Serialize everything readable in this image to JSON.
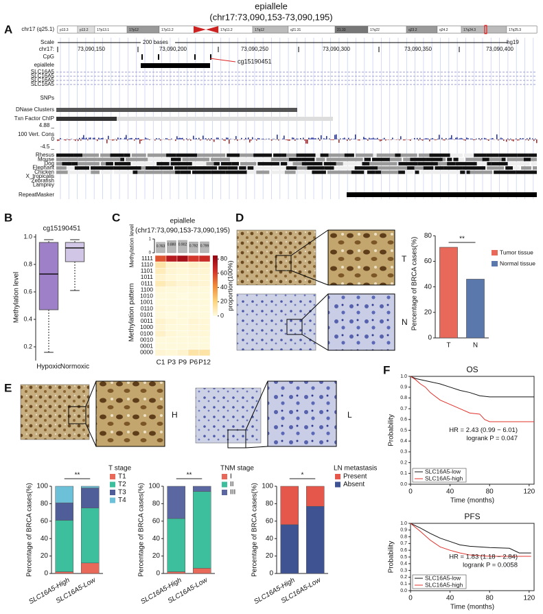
{
  "title": "epiallele",
  "subtitle": "(chr17:73,090,153-73,090,195)",
  "panel_labels": [
    "A",
    "B",
    "C",
    "D",
    "E",
    "F"
  ],
  "browser": {
    "chromosome": "chr17 (q25.1)",
    "bands": [
      "p13.3",
      "p13.2",
      "17p13.1",
      "17p12",
      "17p11.2",
      "17q11.2",
      "17q12",
      "q21.31",
      "21.33",
      "17q22",
      "q23.2",
      "q24.2",
      "17q24.3",
      "17q25.3"
    ],
    "scale_label": "Scale",
    "scale_bar": "200 bases",
    "assembly": "hg19",
    "position_label": "chr17:",
    "positions": [
      "73,090,150",
      "73,090,200",
      "73,090,250",
      "73,090,300",
      "73,090,350",
      "73,090,400"
    ],
    "cpg": "CpG",
    "epiallele": "epiallele",
    "probe": "cg15190451",
    "genes": [
      "SLC16A5",
      "SLC16A5",
      "SLC16A5",
      "SLC16A5"
    ],
    "snps": "SNPs",
    "dnase": "DNase Clusters",
    "txn": "Txn Factor ChIP",
    "cons_max": "4.88 _",
    "cons_label": "100 Vert. Cons",
    "cons_zero": "0",
    "cons_min": "-4.5 _",
    "species": [
      "Rhesus",
      "Mouse",
      "Dog",
      "Elephant",
      "Chicken",
      "X_tropicalis",
      "Zebrafish",
      "Lamprey"
    ],
    "repeatmasker": "RepeatMasker"
  },
  "image_labels": {
    "tissue": [
      "T",
      "N"
    ],
    "expression": [
      "H",
      "L"
    ]
  },
  "chart_data": [
    {
      "type": "box",
      "title": "cg15190451",
      "ylabel": "Methylation level",
      "categories": [
        "Hypoxic",
        "Normoxic"
      ],
      "colors": [
        "#9e80c8",
        "#d2c6e6"
      ],
      "boxes": [
        {
          "whisker_low": 0.16,
          "q1": 0.47,
          "median": 0.73,
          "q3": 0.96,
          "whisker_high": 0.98
        },
        {
          "whisker_low": 0.61,
          "q1": 0.82,
          "median": 0.92,
          "q3": 0.96,
          "whisker_high": 0.98
        }
      ],
      "ylim": [
        0.1,
        1.02
      ],
      "yticks": [
        0.2,
        0.4,
        0.6,
        0.8,
        {
          "value": 1,
          "label": "1.0"
        }
      ]
    },
    {
      "type": "heatmap",
      "title": "epiallele",
      "subtitle": "(chr17:73,090,153-73,090,195)",
      "categories": [
        "C1",
        "P3",
        "P9",
        "P6",
        "P12"
      ],
      "rows": [
        "1111",
        "1110",
        "1101",
        "1011",
        "0111",
        "1100",
        "1010",
        "1001",
        "0110",
        "0101",
        "0011",
        "1000",
        "0100",
        "0010",
        "0001",
        "0000"
      ],
      "ylabel": "Methylation pattern",
      "values": [
        [
          55,
          72,
          78,
          62,
          66
        ],
        [
          12,
          4,
          3,
          5,
          4
        ],
        [
          8,
          3,
          2,
          3,
          3
        ],
        [
          4,
          2,
          1,
          2,
          2
        ],
        [
          9,
          5,
          3,
          4,
          3
        ],
        [
          2,
          1,
          1,
          1,
          1
        ],
        [
          1,
          1,
          0,
          1,
          1
        ],
        [
          1,
          1,
          1,
          1,
          1
        ],
        [
          2,
          1,
          1,
          1,
          1
        ],
        [
          1,
          0,
          1,
          1,
          1
        ],
        [
          4,
          2,
          1,
          3,
          2
        ],
        [
          3,
          1,
          1,
          2,
          2
        ],
        [
          5,
          2,
          1,
          2,
          2
        ],
        [
          1,
          1,
          1,
          1,
          1
        ],
        [
          1,
          1,
          1,
          1,
          1
        ],
        [
          3,
          2,
          4,
          12,
          12
        ]
      ],
      "colormap": [
        "#fffbe0",
        "#fcd27a",
        "#f08a3a",
        "#d0302a",
        "#900010"
      ],
      "colorbar_label": "proportion(100%)",
      "colorbar_lim": [
        0,
        85
      ],
      "colorbar_ticks": [
        0,
        20,
        40,
        60,
        80
      ],
      "level": {
        "ylabel": "Methylation level",
        "values": [
          0.763,
          0.88,
          0.902,
          0.792,
          0.799
        ],
        "value_labels": [
          "0.763",
          "0.880",
          "0.902",
          "0.792",
          "0.799"
        ],
        "color": "#b8b8b8",
        "ylim": [
          0,
          1
        ],
        "yticks": [
          0,
          1
        ]
      }
    },
    {
      "type": "bar",
      "categories": [
        "T",
        "N"
      ],
      "values": [
        71,
        46
      ],
      "colors": [
        "#e8685a",
        "#5b78ad"
      ],
      "legend": [
        "Tumor tissue",
        "Normal tissue"
      ],
      "ylabel": "Percentage of BRCA cases(%)",
      "ylim": [
        0,
        85
      ],
      "yticks": [
        0,
        20,
        40,
        60,
        80
      ],
      "significance": "**"
    },
    {
      "type": "stacked_bar",
      "legend_title": "T stage",
      "categories": [
        "SLC16A5-High",
        "SLC16A5-Low"
      ],
      "ylabel": "Percentage of BRCA cases(%)",
      "ylim": [
        0,
        100
      ],
      "yticks": [
        0,
        20,
        40,
        60,
        80,
        100
      ],
      "significance": "**",
      "series": [
        {
          "name": "T1",
          "color": "#e8685a",
          "values": [
            2,
            12
          ]
        },
        {
          "name": "T2",
          "color": "#3dbf9d",
          "values": [
            59,
            63
          ]
        },
        {
          "name": "T3",
          "color": "#4f5d98",
          "values": [
            20,
            23
          ]
        },
        {
          "name": "T4",
          "color": "#6cc0d8",
          "values": [
            19,
            2
          ]
        }
      ]
    },
    {
      "type": "stacked_bar",
      "legend_title": "TNM stage",
      "categories": [
        "SLC16A5-High",
        "SLC16A5-Low"
      ],
      "ylabel": "Percentage of BRCA cases(%)",
      "ylim": [
        0,
        100
      ],
      "yticks": [
        0,
        20,
        40,
        60,
        80,
        100
      ],
      "significance": "**",
      "series": [
        {
          "name": "I",
          "color": "#e8685a",
          "values": [
            2,
            6
          ]
        },
        {
          "name": "II",
          "color": "#3dbf9d",
          "values": [
            61,
            88
          ]
        },
        {
          "name": "III",
          "color": "#5a67a0",
          "values": [
            37,
            6
          ]
        }
      ]
    },
    {
      "type": "stacked_bar",
      "legend_title": "LN metastasis",
      "categories": [
        "SLC16A5-High",
        "SLC16A5-Low"
      ],
      "ylabel": "Percentage of BRCA cases(%)",
      "ylim": [
        0,
        100
      ],
      "yticks": [
        0,
        20,
        40,
        60,
        80,
        100
      ],
      "significance": "*",
      "legend_order": "reversed",
      "series": [
        {
          "name": "Absent",
          "color": "#3f5393",
          "values": [
            56,
            77
          ]
        },
        {
          "name": "Present",
          "color": "#e5574a",
          "values": [
            44,
            23
          ]
        }
      ]
    },
    {
      "type": "km",
      "title": "OS",
      "xlabel": "Time (months)",
      "ylabel": "Probability",
      "xlim": [
        0,
        125
      ],
      "xticks": [
        0,
        40,
        80,
        120
      ],
      "ylim": [
        0,
        1
      ],
      "yticks": [
        {
          "value": 0,
          "label": "0.0"
        },
        0.1,
        0.2,
        0.3,
        0.4,
        0.5,
        0.6,
        0.7,
        0.8,
        0.9,
        {
          "value": 1,
          "label": "1.0"
        }
      ],
      "annotations": [
        "HR = 2.43 (0.99 − 6.01)",
        "logrank P = 0.047"
      ],
      "series": [
        {
          "name": "SLC16A5-low",
          "color": "#111111",
          "x": [
            0,
            5,
            10,
            20,
            30,
            40,
            50,
            60,
            70,
            80,
            125
          ],
          "values": [
            1,
            0.98,
            0.97,
            0.95,
            0.93,
            0.9,
            0.87,
            0.85,
            0.82,
            0.81,
            0.81
          ]
        },
        {
          "name": "SLC16A5-high",
          "color": "#e0302a",
          "x": [
            0,
            5,
            10,
            15,
            20,
            30,
            40,
            50,
            60,
            70,
            75,
            80,
            125
          ],
          "values": [
            1,
            0.97,
            0.93,
            0.9,
            0.85,
            0.78,
            0.74,
            0.7,
            0.66,
            0.65,
            0.6,
            0.58,
            0.58
          ]
        }
      ]
    },
    {
      "type": "km",
      "title": "PFS",
      "xlabel": "Time (months)",
      "ylabel": "Probability",
      "xlim": [
        0,
        125
      ],
      "xticks": [
        0,
        40,
        80,
        120
      ],
      "ylim": [
        0,
        1
      ],
      "yticks": [
        {
          "value": 0,
          "label": "0.0"
        },
        0.1,
        0.2,
        0.3,
        0.4,
        0.5,
        0.6,
        0.7,
        0.8,
        0.9,
        {
          "value": 1,
          "label": "1.0"
        }
      ],
      "annotations": [
        "HR = 1.83 (1.18 − 2.84)",
        "logrank P = 0.0058"
      ],
      "series": [
        {
          "name": "SLC16A5-low",
          "color": "#111111",
          "x": [
            0,
            10,
            20,
            30,
            40,
            50,
            60,
            80,
            100,
            110,
            122
          ],
          "values": [
            1,
            0.93,
            0.85,
            0.78,
            0.73,
            0.68,
            0.66,
            0.64,
            0.63,
            0.56,
            0.56
          ]
        },
        {
          "name": "SLC16A5-high",
          "color": "#e0302a",
          "x": [
            0,
            10,
            20,
            30,
            40,
            50,
            60,
            70,
            80,
            122
          ],
          "values": [
            1,
            0.88,
            0.75,
            0.65,
            0.6,
            0.56,
            0.53,
            0.52,
            0.51,
            0.51
          ]
        }
      ]
    }
  ]
}
